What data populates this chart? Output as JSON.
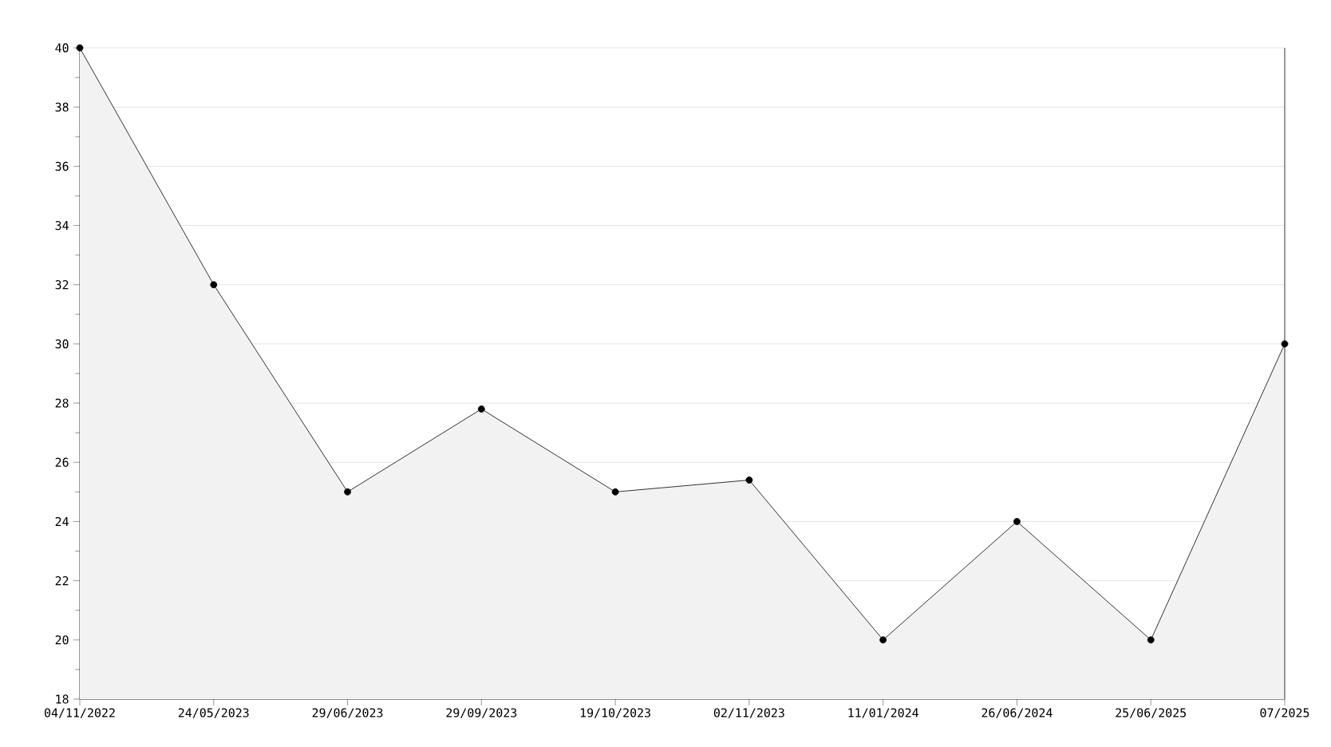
{
  "chart_data": {
    "type": "area",
    "categories": [
      "04/11/2022",
      "24/05/2023",
      "29/06/2023",
      "29/09/2023",
      "19/10/2023",
      "02/11/2023",
      "11/01/2024",
      "26/06/2024",
      "25/06/2025",
      "07/2025"
    ],
    "series": [
      {
        "color": "#000000",
        "values": [
          40,
          32,
          25,
          27.8,
          25,
          25.4,
          20,
          24,
          20,
          30
        ]
      }
    ],
    "ylim": [
      18,
      40
    ],
    "yticks": [
      18,
      20,
      22,
      24,
      26,
      28,
      30,
      32,
      34,
      36,
      38,
      40
    ],
    "grid": "y",
    "marker": "circle",
    "line_style": "solid"
  }
}
